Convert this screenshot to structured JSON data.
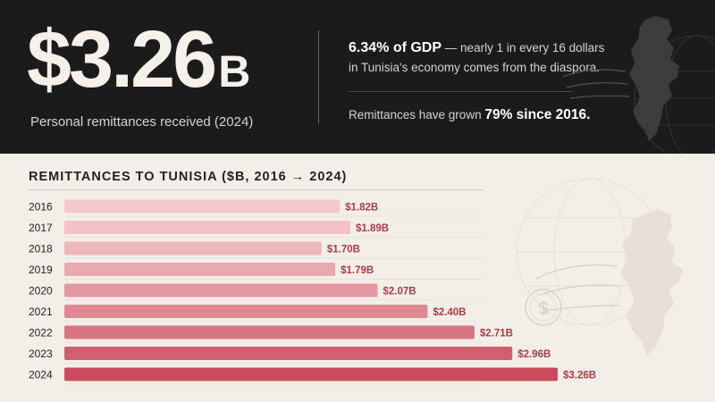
{
  "headline": {
    "value": "$3.26",
    "unit": "B",
    "caption": "Personal remittances received (2024)"
  },
  "stats": {
    "gdp_bold": "6.34% of GDP",
    "gdp_text": "— nearly 1 in every 16 dollars in Tunisia's economy comes from the diaspora.",
    "growth_text": "Remittances have grown",
    "growth_bold": "79% since 2016."
  },
  "colors": {
    "dark_bg": "#1b1b1b",
    "light_bg": "#f3efe8",
    "label_red": "#b03a4a"
  },
  "icons": [
    "tunisia-map-icon",
    "globe-icon",
    "dollar-coin-icon",
    "arrow-icon"
  ],
  "chart_data": {
    "type": "bar",
    "orientation": "horizontal",
    "title": "REMITTANCES TO TUNISIA ($B, 2016 → 2024)",
    "categories": [
      "2016",
      "2017",
      "2018",
      "2019",
      "2020",
      "2021",
      "2022",
      "2023",
      "2024"
    ],
    "values": [
      1.82,
      1.89,
      1.7,
      1.79,
      2.07,
      2.4,
      2.71,
      2.96,
      3.26
    ],
    "labels": [
      "$1.82B",
      "$1.89B",
      "$1.70B",
      "$1.79B",
      "$2.07B",
      "$2.40B",
      "$2.71B",
      "$2.96B",
      "$3.26B"
    ],
    "xlim": [
      0,
      3.26
    ],
    "grid": false,
    "legend": "none"
  }
}
